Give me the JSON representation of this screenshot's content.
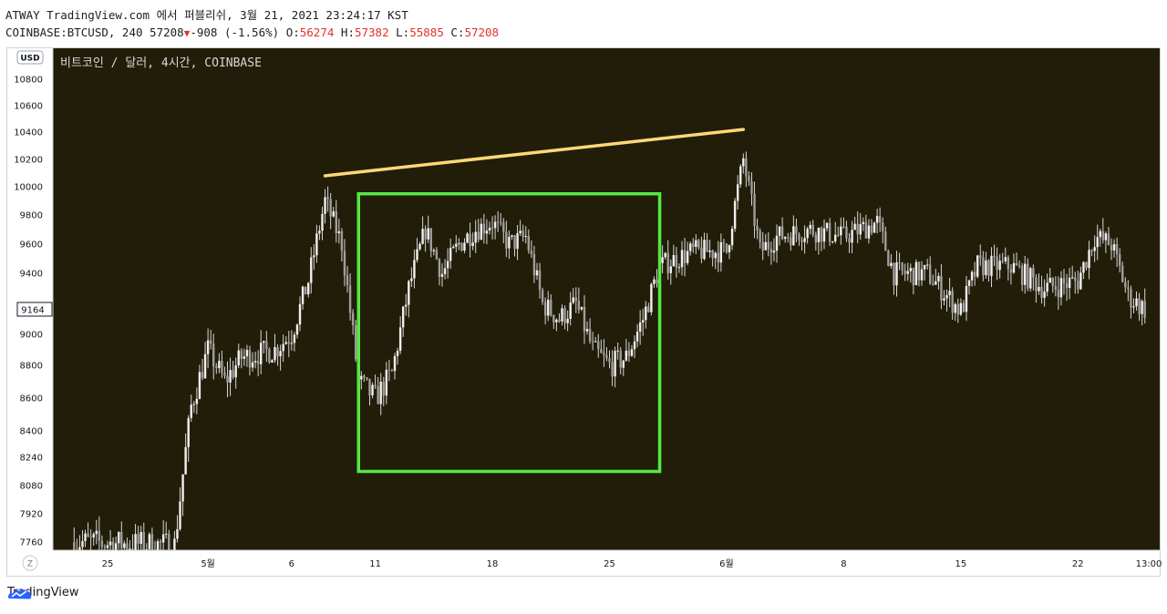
{
  "header": {
    "line1": "ATWAY TradingView.com 에서 퍼블리쉬, 3월 21, 2021 23:24:17 KST",
    "symbol": "COINBASE:BTCUSD, 240",
    "last": "57208",
    "change": "-908 (-1.56%)",
    "o_label": "O:",
    "o_value": "56274",
    "h_label": "H:",
    "h_value": "57382",
    "l_label": "L:",
    "l_value": "55885",
    "c_label": "C:",
    "c_value": "57208"
  },
  "chart_data": {
    "type": "candlestick",
    "title": "비트코인 / 달러, 4시간, COINBASE",
    "currency_badge": "USD",
    "y_ticks": [
      10800,
      10600,
      10400,
      10200,
      10000,
      9800,
      9600,
      9400,
      9000,
      8800,
      8600,
      8400,
      8240,
      8080,
      7920,
      7760
    ],
    "current_price_label": "9164",
    "x_ticks": [
      "25",
      "5월",
      "6",
      "11",
      "18",
      "25",
      "6월",
      "8",
      "15",
      "22",
      "13:00"
    ],
    "timeframe_button": "Z",
    "colors": {
      "background": "#211d08",
      "candle": "#dcdcdc",
      "trendline": "#ffd878",
      "box": "#55e844"
    },
    "price_path": [
      [
        "4/23",
        7760
      ],
      [
        "4/29",
        7740
      ],
      [
        "4/30",
        8550
      ],
      [
        "5/1",
        8900
      ],
      [
        "5/2",
        8700
      ],
      [
        "5/3",
        8850
      ],
      [
        "5/5",
        8900
      ],
      [
        "5/6",
        9000
      ],
      [
        "5/7",
        9350
      ],
      [
        "5/8",
        9900
      ],
      [
        "5/9",
        9600
      ],
      [
        "5/10",
        8700
      ],
      [
        "5/11",
        8600
      ],
      [
        "5/12",
        8750
      ],
      [
        "5/13",
        9300
      ],
      [
        "5/14",
        9700
      ],
      [
        "5/15",
        9400
      ],
      [
        "5/16",
        9600
      ],
      [
        "5/17",
        9700
      ],
      [
        "5/18",
        9750
      ],
      [
        "5/19",
        9600
      ],
      [
        "5/20",
        9650
      ],
      [
        "5/21",
        9200
      ],
      [
        "5/22",
        9100
      ],
      [
        "5/23",
        9200
      ],
      [
        "5/24",
        8900
      ],
      [
        "5/25",
        8800
      ],
      [
        "5/26",
        8850
      ],
      [
        "5/27",
        9100
      ],
      [
        "5/28",
        9450
      ],
      [
        "5/29",
        9500
      ],
      [
        "5/30",
        9550
      ],
      [
        "6/1",
        9550
      ],
      [
        "6/2",
        10200
      ],
      [
        "6/3",
        9550
      ],
      [
        "6/4",
        9650
      ],
      [
        "6/6",
        9700
      ],
      [
        "6/8",
        9650
      ],
      [
        "6/10",
        9750
      ],
      [
        "6/11",
        9400
      ],
      [
        "6/13",
        9400
      ],
      [
        "6/15",
        9150
      ],
      [
        "6/16",
        9450
      ],
      [
        "6/18",
        9450
      ],
      [
        "6/20",
        9300
      ],
      [
        "6/22",
        9350
      ],
      [
        "6/23",
        9650
      ],
      [
        "6/24",
        9600
      ],
      [
        "6/25",
        9250
      ],
      [
        "6/26",
        9164
      ]
    ],
    "trendline": {
      "start": [
        "5/8",
        10080
      ],
      "end": [
        "6/2",
        10420
      ]
    },
    "range_box": {
      "from": "5/10",
      "to": "5/28",
      "high": 9950,
      "low": 8160
    }
  },
  "footer": {
    "brand": "TradingView",
    "logo_icon": "tradingview-logo-icon"
  }
}
